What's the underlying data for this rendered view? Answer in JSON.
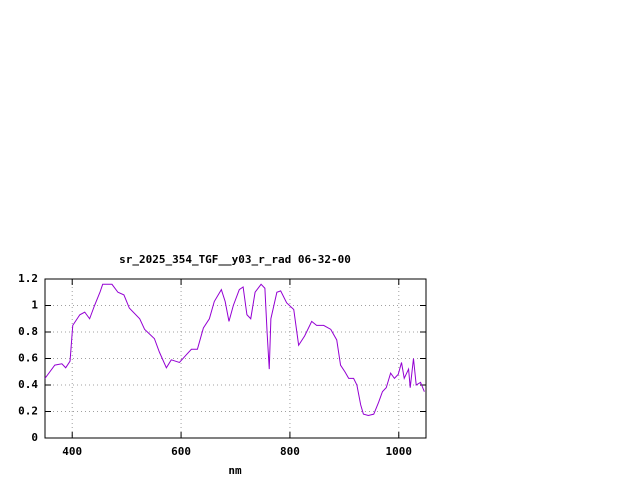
{
  "chart_data": {
    "type": "line",
    "title": "sr_2025_354_TGF__y03_r_rad 06-32-00",
    "x_label": "nm",
    "x": [
      350,
      368,
      381,
      388,
      396,
      401,
      414,
      423,
      432,
      441,
      451,
      456,
      473,
      484,
      495,
      505,
      524,
      533,
      551,
      560,
      573,
      582,
      597,
      610,
      619,
      630,
      641,
      652,
      661,
      674,
      681,
      688,
      696,
      707,
      714,
      721,
      728,
      736,
      747,
      754,
      758,
      762,
      765,
      776,
      783,
      794,
      807,
      816,
      827,
      840,
      849,
      862,
      875,
      886,
      893,
      901,
      908,
      917,
      923,
      930,
      935,
      944,
      954,
      963,
      970,
      977,
      985,
      992,
      999,
      1005,
      1010,
      1018,
      1021,
      1027,
      1032,
      1040,
      1047
    ],
    "values": [
      0.45,
      0.55,
      0.56,
      0.53,
      0.58,
      0.85,
      0.93,
      0.95,
      0.9,
      1.0,
      1.1,
      1.16,
      1.16,
      1.1,
      1.08,
      0.98,
      0.9,
      0.82,
      0.75,
      0.65,
      0.53,
      0.59,
      0.57,
      0.63,
      0.67,
      0.67,
      0.83,
      0.9,
      1.03,
      1.12,
      1.03,
      0.88,
      1.0,
      1.12,
      1.14,
      0.93,
      0.9,
      1.1,
      1.16,
      1.13,
      0.8,
      0.52,
      0.9,
      1.1,
      1.11,
      1.02,
      0.97,
      0.7,
      0.77,
      0.88,
      0.85,
      0.85,
      0.82,
      0.74,
      0.55,
      0.5,
      0.45,
      0.45,
      0.4,
      0.25,
      0.18,
      0.17,
      0.18,
      0.27,
      0.35,
      0.38,
      0.49,
      0.45,
      0.48,
      0.57,
      0.45,
      0.52,
      0.38,
      0.6,
      0.4,
      0.42,
      0.35
    ],
    "color": "#9400d3",
    "xlim": [
      350,
      1050
    ],
    "ylim": [
      0,
      1.2
    ],
    "xticks": [
      400,
      600,
      800,
      1000
    ],
    "yticks": [
      0,
      0.2,
      0.4,
      0.6,
      0.8,
      1,
      1.2
    ],
    "grid": true
  }
}
